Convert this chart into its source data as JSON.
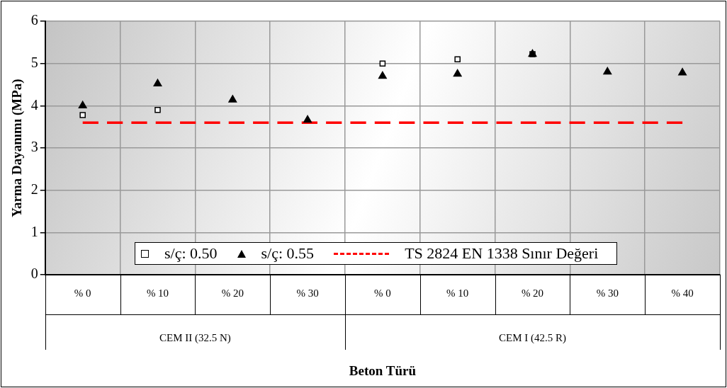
{
  "chart_data": {
    "type": "scatter",
    "xlabel": "Beton Türü",
    "ylabel": "Yarma Dayanımı (MPa)",
    "categories": [
      "% 0",
      "% 10",
      "% 20",
      "% 30",
      "% 0",
      "% 10",
      "% 20",
      "% 30",
      "% 40"
    ],
    "series": [
      {
        "name": "s/ç: 0.50",
        "marker": "square",
        "color": "#000000",
        "values": [
          3.78,
          3.9,
          null,
          null,
          5.0,
          5.1,
          5.22,
          null,
          null
        ]
      },
      {
        "name": "s/ç: 0.55",
        "marker": "triangle",
        "color": "#000000",
        "values": [
          4.0,
          4.52,
          4.14,
          3.66,
          4.7,
          4.75,
          5.22,
          4.8,
          4.78
        ]
      },
      {
        "name": "TS 2824 EN 1338 Sınır Değeri",
        "type": "line",
        "marker": "none",
        "line_style": "dashed",
        "color": "#ff0000",
        "values": [
          3.6,
          3.6,
          3.6,
          3.6,
          3.6,
          3.6,
          3.6,
          3.6,
          3.6
        ]
      }
    ],
    "annotations": [
      "CEM II (32.5 N)",
      "CEM I (42.5 R)"
    ],
    "ylim": [
      0,
      6
    ],
    "yticks": [
      0,
      1,
      2,
      3,
      4,
      5,
      6
    ],
    "grid": true,
    "legend": "bottom"
  }
}
